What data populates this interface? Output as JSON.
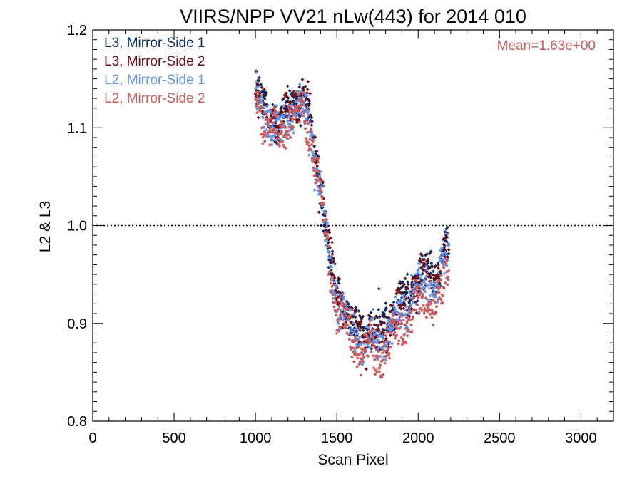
{
  "chart_data": {
    "type": "scatter",
    "title": "VIIRS/NPP VV21 nLw(443) for 2014 010",
    "xlabel": "Scan Pixel",
    "ylabel": "L2 & L3",
    "xlim": [
      0,
      3200
    ],
    "ylim": [
      0.8,
      1.2
    ],
    "x_ticks": [
      0,
      500,
      1000,
      1500,
      2000,
      2500,
      3000
    ],
    "x_tick_labels": [
      "0",
      "500",
      "1000",
      "1500",
      "2000",
      "2500",
      "3000"
    ],
    "y_ticks": [
      0.8,
      0.9,
      1.0,
      1.1,
      1.2
    ],
    "y_tick_labels": [
      "0.8",
      "0.9",
      "1.0",
      "1.1",
      "1.2"
    ],
    "reference_line": 1.0,
    "annotation": "Mean=1.63e+00",
    "annotation_color": "#cd5c5c",
    "legend_position": "top-left",
    "trend_x": [
      1000,
      1050,
      1100,
      1150,
      1200,
      1250,
      1300,
      1330,
      1360,
      1400,
      1430,
      1460,
      1500,
      1550,
      1600,
      1650,
      1700,
      1750,
      1800,
      1850,
      1900,
      1950,
      2000,
      2050,
      2100,
      2150,
      2190
    ],
    "series": [
      {
        "name": "L3, Mirror-Side 1",
        "color": "#0b2c6b",
        "marker": "diamond",
        "trend_y": [
          1.14,
          1.12,
          1.115,
          1.105,
          1.12,
          1.13,
          1.125,
          1.11,
          1.08,
          1.04,
          1.0,
          0.96,
          0.935,
          0.92,
          0.895,
          0.89,
          0.9,
          0.885,
          0.9,
          0.91,
          0.925,
          0.93,
          0.95,
          0.955,
          0.945,
          0.97,
          0.985
        ]
      },
      {
        "name": "L3, Mirror-Side 2",
        "color": "#6b0b12",
        "marker": "diamond",
        "trend_y": [
          1.135,
          1.12,
          1.11,
          1.105,
          1.115,
          1.13,
          1.13,
          1.12,
          1.085,
          1.05,
          1.005,
          0.965,
          0.935,
          0.915,
          0.895,
          0.89,
          0.895,
          0.88,
          0.895,
          0.91,
          0.92,
          0.93,
          0.945,
          0.95,
          0.945,
          0.965,
          0.98
        ]
      },
      {
        "name": "L2, Mirror-Side 1",
        "color": "#6495ed",
        "marker": "dot",
        "trend_y": [
          1.135,
          1.115,
          1.105,
          1.095,
          1.11,
          1.12,
          1.12,
          1.105,
          1.075,
          1.04,
          0.995,
          0.955,
          0.925,
          0.91,
          0.885,
          0.88,
          0.885,
          0.87,
          0.885,
          0.9,
          0.91,
          0.92,
          0.935,
          0.94,
          0.93,
          0.955,
          0.97
        ]
      },
      {
        "name": "L2, Mirror-Side 2",
        "color": "#cd5c5c",
        "marker": "dot",
        "trend_y": [
          1.125,
          1.11,
          1.1,
          1.09,
          1.105,
          1.115,
          1.115,
          1.1,
          1.07,
          1.035,
          0.99,
          0.95,
          0.915,
          0.9,
          0.875,
          0.87,
          0.875,
          0.86,
          0.875,
          0.885,
          0.895,
          0.905,
          0.92,
          0.925,
          0.915,
          0.935,
          0.955
        ]
      }
    ]
  }
}
